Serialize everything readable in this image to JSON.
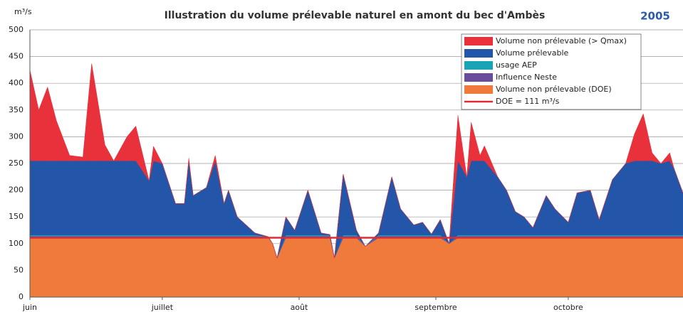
{
  "chart_data": {
    "type": "stacked_area",
    "title": "Illustration du volume prélevable naturel en amont du bec d'Ambès",
    "year": "2005",
    "y_label": "m³/s",
    "x": [
      0,
      2,
      4,
      6,
      9,
      12,
      14,
      17,
      19,
      22,
      24,
      27,
      28,
      30,
      33,
      35,
      36,
      37,
      40,
      42,
      44,
      45,
      47,
      51,
      54,
      55,
      56,
      58,
      60,
      63,
      66,
      68,
      69,
      71,
      74,
      76,
      79,
      82,
      84,
      87,
      89,
      91,
      93,
      95,
      97,
      99,
      100,
      102,
      103,
      106,
      108,
      110,
      112,
      114,
      117,
      119,
      122,
      124,
      127,
      129,
      132,
      135,
      137,
      139,
      141,
      143,
      145,
      146,
      148
    ],
    "xlim": [
      0,
      148
    ],
    "xticks": [
      {
        "value": 0,
        "label": "juin"
      },
      {
        "value": 30,
        "label": "juillet"
      },
      {
        "value": 61,
        "label": "août"
      },
      {
        "value": 92,
        "label": "septembre"
      },
      {
        "value": 122,
        "label": "octobre"
      }
    ],
    "ylim": [
      0,
      500
    ],
    "yticks": [
      0,
      50,
      100,
      150,
      200,
      250,
      300,
      350,
      400,
      450,
      500
    ],
    "grid": true,
    "legend": "upper right",
    "series": [
      {
        "name": "Volume non prélevable (DOE)",
        "color": "#f07a3c",
        "values": [
          111,
          111,
          111,
          111,
          111,
          111,
          111,
          111,
          111,
          111,
          111,
          111,
          111,
          111,
          111,
          111,
          111,
          111,
          111,
          111,
          111,
          111,
          111,
          111,
          111,
          100,
          73,
          111,
          111,
          111,
          111,
          111,
          73,
          111,
          111,
          95,
          111,
          111,
          111,
          111,
          111,
          111,
          111,
          100,
          111,
          111,
          111,
          111,
          111,
          111,
          111,
          111,
          111,
          111,
          111,
          111,
          111,
          111,
          111,
          111,
          111,
          111,
          111,
          111,
          111,
          111,
          111,
          111,
          111
        ]
      },
      {
        "name": "Influence Neste",
        "color": "#6a4c9c",
        "values": [
          3,
          3,
          3,
          3,
          3,
          3,
          3,
          3,
          3,
          3,
          3,
          3,
          3,
          3,
          3,
          3,
          3,
          3,
          3,
          3,
          3,
          3,
          3,
          3,
          2,
          0,
          0,
          3,
          3,
          3,
          3,
          3,
          0,
          3,
          3,
          0,
          3,
          3,
          3,
          3,
          3,
          3,
          3,
          0,
          3,
          3,
          3,
          3,
          3,
          3,
          3,
          3,
          3,
          3,
          3,
          3,
          3,
          3,
          3,
          3,
          3,
          3,
          3,
          3,
          3,
          3,
          3,
          3,
          3
        ]
      },
      {
        "name": "usage AEP",
        "color": "#1aa3b5",
        "values": [
          2,
          2,
          2,
          2,
          2,
          2,
          2,
          2,
          2,
          2,
          2,
          2,
          2,
          2,
          2,
          2,
          2,
          2,
          2,
          2,
          2,
          2,
          2,
          2,
          0,
          0,
          0,
          2,
          2,
          2,
          2,
          2,
          0,
          2,
          2,
          0,
          2,
          2,
          2,
          2,
          2,
          2,
          2,
          0,
          2,
          2,
          2,
          2,
          2,
          2,
          2,
          2,
          2,
          2,
          2,
          2,
          2,
          2,
          2,
          2,
          2,
          2,
          2,
          2,
          2,
          2,
          2,
          2,
          2
        ]
      },
      {
        "name": "Volume prélevable",
        "color": "#2356a8",
        "values": [
          139,
          139,
          139,
          139,
          139,
          139,
          139,
          139,
          139,
          139,
          139,
          102,
          139,
          134,
          59,
          59,
          139,
          74,
          89,
          139,
          59,
          84,
          34,
          4,
          0,
          0,
          0,
          34,
          9,
          84,
          4,
          1,
          0,
          114,
          9,
          0,
          4,
          109,
          49,
          19,
          24,
          2,
          29,
          0,
          139,
          109,
          139,
          139,
          139,
          109,
          84,
          44,
          34,
          14,
          74,
          49,
          24,
          79,
          84,
          29,
          104,
          134,
          139,
          139,
          139,
          134,
          139,
          124,
          79
        ]
      },
      {
        "name": "Volume non prélevable (> Qmax)",
        "color": "#e8313a",
        "values": [
          170,
          95,
          138,
          75,
          10,
          7,
          182,
          30,
          0,
          45,
          65,
          0,
          27,
          0,
          0,
          0,
          5,
          0,
          0,
          10,
          0,
          0,
          0,
          0,
          0,
          0,
          0,
          0,
          0,
          0,
          0,
          0,
          0,
          0,
          0,
          0,
          0,
          0,
          0,
          0,
          0,
          0,
          0,
          0,
          85,
          0,
          72,
          10,
          28,
          0,
          0,
          0,
          0,
          0,
          0,
          0,
          0,
          0,
          0,
          0,
          0,
          0,
          50,
          88,
          15,
          0,
          15,
          0,
          0
        ]
      }
    ],
    "doe_line": {
      "name": "DOE = 111 m³/s",
      "color": "#e02a36",
      "value": 111
    }
  }
}
